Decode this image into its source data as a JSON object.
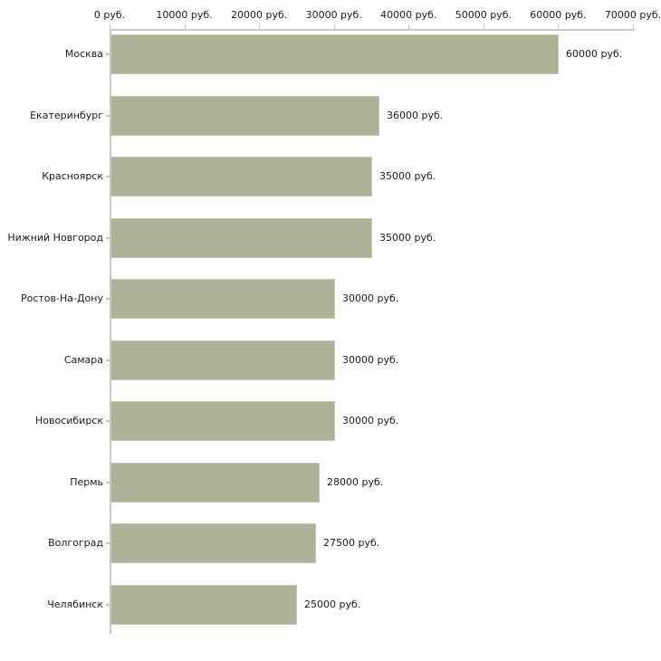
{
  "chart_data": {
    "type": "bar",
    "orientation": "horizontal",
    "title": "",
    "categories": [
      "Москва",
      "Екатеринбург",
      "Красноярск",
      "Нижний Новгород",
      "Ростов-На-Дону",
      "Самара",
      "Новосибирск",
      "Пермь",
      "Волгоград",
      "Челябинск"
    ],
    "values": [
      60000,
      36000,
      35000,
      35000,
      30000,
      30000,
      30000,
      28000,
      27500,
      25000
    ],
    "value_labels": [
      "60000 руб.",
      "36000 руб.",
      "35000 руб.",
      "35000 руб.",
      "30000 руб.",
      "30000 руб.",
      "30000 руб.",
      "28000 руб.",
      "27500 руб.",
      "25000 руб."
    ],
    "x_axis": {
      "position": "top",
      "unit": "руб.",
      "tick_values": [
        0,
        10000,
        20000,
        30000,
        40000,
        50000,
        60000,
        70000
      ],
      "tick_labels": [
        "0 руб.",
        "10000 руб.",
        "20000 руб.",
        "30000 руб.",
        "40000 руб.",
        "50000 руб.",
        "60000 руб.",
        "70000 руб."
      ]
    },
    "xlim": [
      0,
      70000
    ],
    "grid": false,
    "legend": null,
    "colors": {
      "bar_fill": "#acb399",
      "bar_border": "#c3c8b1",
      "axis_line": "#c9c9c9",
      "tick_mark": "#c8c5a0",
      "text": "#1b1b1b",
      "background": "#ffffff"
    }
  }
}
